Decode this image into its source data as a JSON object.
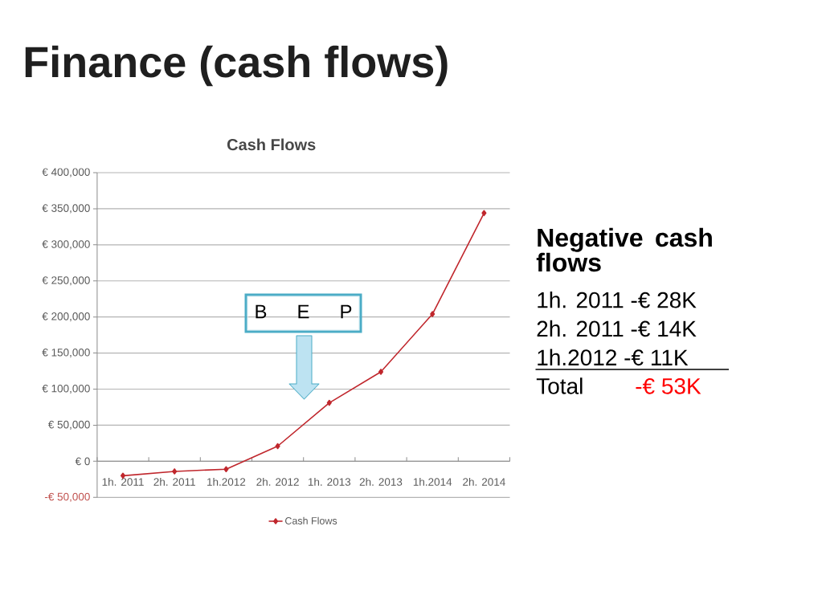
{
  "chart_data": {
    "type": "line",
    "title": "Finance (cash flows)",
    "subtitle": "Cash Flows",
    "categories": [
      "1h. 2011",
      "2h. 2011",
      "1h.2012",
      "2h. 2012",
      "1h. 2013",
      "2h. 2013",
      "1h.2014",
      "2h. 2014"
    ],
    "series": [
      {
        "name": "Cash Flows",
        "color": "#c0272d",
        "values": [
          -20000,
          -14000,
          -11000,
          21000,
          81000,
          124000,
          204000,
          344000
        ]
      }
    ],
    "ylim": [
      -50000,
      400000
    ],
    "yticks": [
      {
        "value": -50000,
        "label": "-€ 50,000"
      },
      {
        "value": 0,
        "label": "€ 0"
      },
      {
        "value": 50000,
        "label": "€ 50,000"
      },
      {
        "value": 100000,
        "label": "€ 100,000"
      },
      {
        "value": 150000,
        "label": "€ 150,000"
      },
      {
        "value": 200000,
        "label": "€ 200,000"
      },
      {
        "value": 250000,
        "label": "€ 250,000"
      },
      {
        "value": 300000,
        "label": "€ 300,000"
      },
      {
        "value": 350000,
        "label": "€ 350,000"
      },
      {
        "value": 400000,
        "label": "€ 400,000"
      }
    ],
    "grid": "y",
    "legend": "bottom",
    "marker": "diamond",
    "line_style": "solid",
    "annotations": [
      "B E P",
      "Negative cash flows",
      "1h. 2011 -€ 28K",
      "2h. 2011 -€ 14K",
      "1h.2012 -€ 11K",
      "Total",
      "-€ 53K"
    ]
  }
}
